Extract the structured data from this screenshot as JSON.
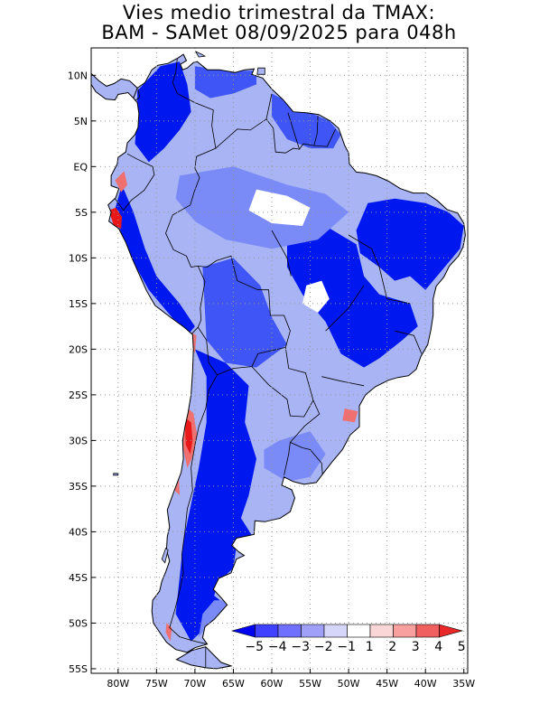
{
  "title": {
    "line1": "Vies medio trimestral da TMAX:",
    "line2": "BAM - SAMet 08/09/2025  para 048h"
  },
  "map": {
    "lon_range": [
      -83.5,
      -34.5
    ],
    "lat_range": [
      -55.5,
      13.0
    ],
    "grid": true,
    "lat_ticks": [
      {
        "value": 10,
        "label": "10N"
      },
      {
        "value": 5,
        "label": "5N"
      },
      {
        "value": 0,
        "label": "EQ"
      },
      {
        "value": -5,
        "label": "5S"
      },
      {
        "value": -10,
        "label": "10S"
      },
      {
        "value": -15,
        "label": "15S"
      },
      {
        "value": -20,
        "label": "20S"
      },
      {
        "value": -25,
        "label": "25S"
      },
      {
        "value": -30,
        "label": "30S"
      },
      {
        "value": -35,
        "label": "35S"
      },
      {
        "value": -40,
        "label": "40S"
      },
      {
        "value": -45,
        "label": "45S"
      },
      {
        "value": -50,
        "label": "50S"
      },
      {
        "value": -55,
        "label": "55S"
      }
    ],
    "lon_ticks": [
      {
        "value": -80,
        "label": "80W"
      },
      {
        "value": -75,
        "label": "75W"
      },
      {
        "value": -70,
        "label": "70W"
      },
      {
        "value": -65,
        "label": "65W"
      },
      {
        "value": -60,
        "label": "60W"
      },
      {
        "value": -55,
        "label": "55W"
      },
      {
        "value": -50,
        "label": "50W"
      },
      {
        "value": -45,
        "label": "45W"
      },
      {
        "value": -40,
        "label": "40W"
      },
      {
        "value": -35,
        "label": "35W"
      }
    ]
  },
  "colorbar": {
    "colors": [
      "#0000f0",
      "#4040ff",
      "#7070ff",
      "#a0a0f8",
      "#d6d6fa",
      "#ffffff",
      "#fad6d6",
      "#f8a0a0",
      "#f06060",
      "#e82828"
    ],
    "labels": [
      "-5",
      "-4",
      "-3",
      "-2",
      "-1",
      "1",
      "2",
      "3",
      "4",
      "5"
    ]
  },
  "colors": {
    "land_base": "#a8b4f4",
    "strong_cold": "#0018f0",
    "cold": "#3f55f5",
    "mild_cold": "#7a8af7",
    "neutral": "#ffffff",
    "warm": "#f07070",
    "hot": "#e81818",
    "border": "#000000",
    "grid": "#999999"
  }
}
